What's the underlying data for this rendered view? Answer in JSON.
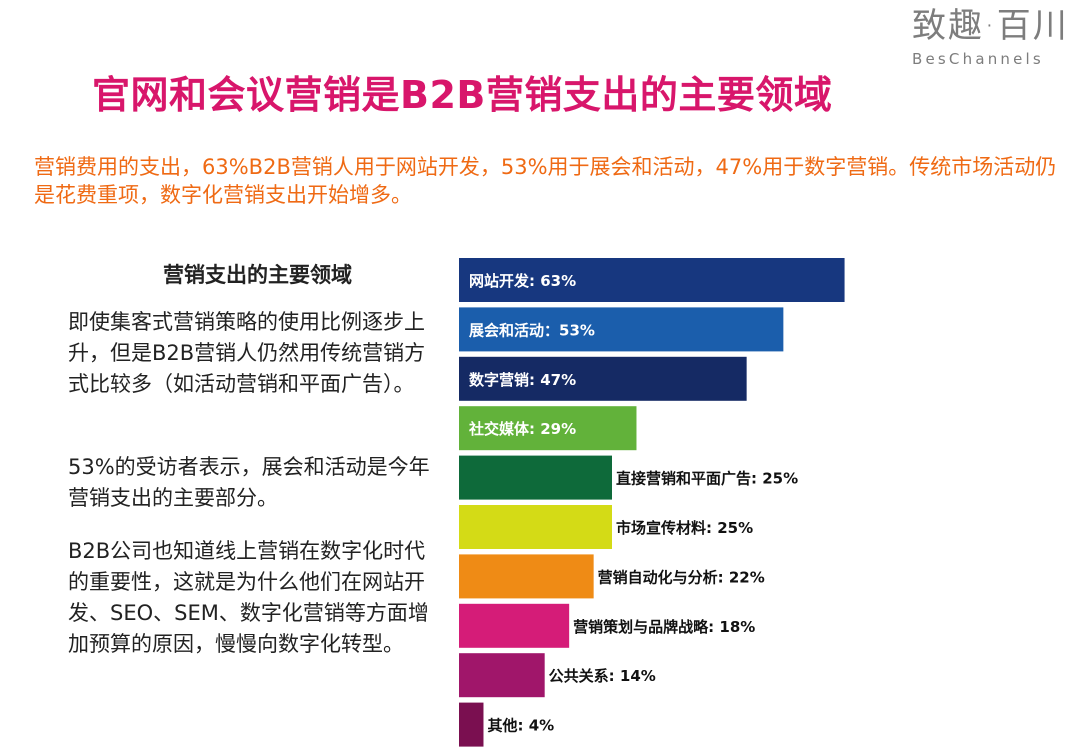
{
  "logo": {
    "cn": "致趣·百川",
    "en": "BesChannels"
  },
  "title": "官网和会议营销是B2B营销支出的主要领域",
  "summary": "营销费用的支出，63%B2B营销人用于网站开发，53%用于展会和活动，47%用于数字营销。传统市场活动仍是花费重项，数字化营销支出开始增多。",
  "panel": {
    "title": "营销支出的主要领域",
    "paragraphs": [
      "即使集客式营销策略的使用比例逐步上升，但是B2B营销人仍然用传统营销方式比较多（如活动营销和平面广告）。",
      "53%的受访者表示，展会和活动是今年营销支出的主要部分。",
      "B2B公司也知道线上营销在数字化时代的重要性，这就是为什么他们在网站开发、SEO、SEM、数字化营销等方面增加预算的原因，慢慢向数字化转型。"
    ]
  },
  "chart_data": {
    "type": "bar",
    "orientation": "horizontal",
    "title": "营销支出的主要领域",
    "categories": [
      "网站开发",
      "展会和活动",
      "数字营销",
      "社交媒体",
      "直接营销和平面广告",
      "市场宣传材料",
      "营销自动化与分析",
      "营销策划与品牌战略",
      "公共关系",
      "其他"
    ],
    "values": [
      63,
      53,
      47,
      29,
      25,
      25,
      22,
      18,
      14,
      4
    ],
    "labels": [
      "网站开发: 63%",
      "展会和活动：53%",
      "数字营销: 47%",
      "社交媒体: 29%",
      "直接营销和平面广告: 25%",
      "市场宣传材料: 25%",
      "营销自动化与分析: 22%",
      "营销策划与品牌战略: 18%",
      "公共关系: 14%",
      "其他: 4%"
    ],
    "colors": [
      "#17377f",
      "#1b5eac",
      "#152a64",
      "#62b23a",
      "#0e6a3a",
      "#d4db16",
      "#ef8b15",
      "#d51c78",
      "#a0166a",
      "#7a0f50"
    ],
    "label_inside": [
      true,
      true,
      true,
      true,
      false,
      false,
      false,
      false,
      false,
      false
    ],
    "unit": "%",
    "grid": false,
    "legend": "none"
  }
}
